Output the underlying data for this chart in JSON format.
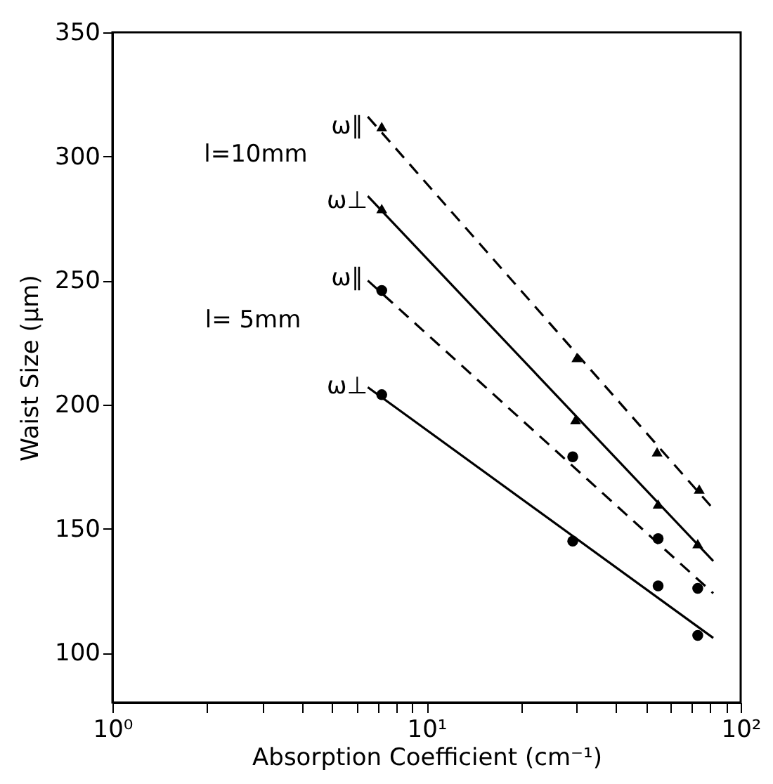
{
  "chart_data": {
    "type": "scatter",
    "xlabel": "Absorption Coefficient (cm⁻¹)",
    "ylabel": "Waist Size (μm)",
    "log": "x",
    "xlim": [
      1,
      100
    ],
    "ylim": [
      80,
      350
    ],
    "xticks": [
      {
        "value": 1,
        "label": "10⁰"
      },
      {
        "value": 2,
        "label": null
      },
      {
        "value": 3,
        "label": null
      },
      {
        "value": 4,
        "label": null
      },
      {
        "value": 5,
        "label": null
      },
      {
        "value": 6,
        "label": null
      },
      {
        "value": 7,
        "label": null
      },
      {
        "value": 8,
        "label": null
      },
      {
        "value": 9,
        "label": null
      },
      {
        "value": 10,
        "label": "10¹"
      },
      {
        "value": 20,
        "label": null
      },
      {
        "value": 30,
        "label": null
      },
      {
        "value": 40,
        "label": null
      },
      {
        "value": 50,
        "label": null
      },
      {
        "value": 60,
        "label": null
      },
      {
        "value": 70,
        "label": null
      },
      {
        "value": 80,
        "label": null
      },
      {
        "value": 90,
        "label": null
      },
      {
        "value": 100,
        "label": "10²"
      }
    ],
    "yticks": [
      100,
      150,
      200,
      250,
      300,
      350
    ],
    "grid": false,
    "series": [
      {
        "marker": "triangle",
        "color": "#000000",
        "x": [
          7.2,
          30.1,
          54.2,
          73.8
        ],
        "values": [
          312,
          219,
          181,
          166
        ]
      },
      {
        "marker": "triangle",
        "color": "#000000",
        "x": [
          7.2,
          29.8,
          54.6,
          73
        ],
        "values": [
          279,
          194,
          160,
          144
        ]
      },
      {
        "marker": "circle",
        "color": "#000000",
        "x": [
          7.2,
          29.2,
          54.6,
          73
        ],
        "values": [
          246,
          179,
          146,
          126
        ]
      },
      {
        "marker": "circle",
        "color": "#000000",
        "x": [
          7.2,
          29.2,
          54.6,
          73
        ],
        "values": [
          204,
          145,
          127,
          107
        ]
      },
      {
        "type": "line",
        "marker": "none",
        "line_style": "dashed",
        "color": "#000000",
        "x": [
          6.5,
          81.8
        ],
        "values": [
          316,
          158
        ]
      },
      {
        "type": "line",
        "marker": "none",
        "line_style": "solid",
        "color": "#000000",
        "x": [
          6.5,
          81.8
        ],
        "values": [
          284,
          137
        ]
      },
      {
        "type": "line",
        "marker": "none",
        "line_style": "dashed",
        "color": "#000000",
        "x": [
          6.5,
          81.8
        ],
        "values": [
          250,
          124
        ]
      },
      {
        "type": "line",
        "marker": "none",
        "line_style": "solid",
        "color": "#000000",
        "x": [
          6.5,
          81.8
        ],
        "values": [
          207,
          106
        ]
      }
    ],
    "annotations": [
      "l=10mm",
      "l= 5mm",
      "ω∥",
      "ω⊥",
      "ω∥",
      "ω⊥"
    ]
  }
}
